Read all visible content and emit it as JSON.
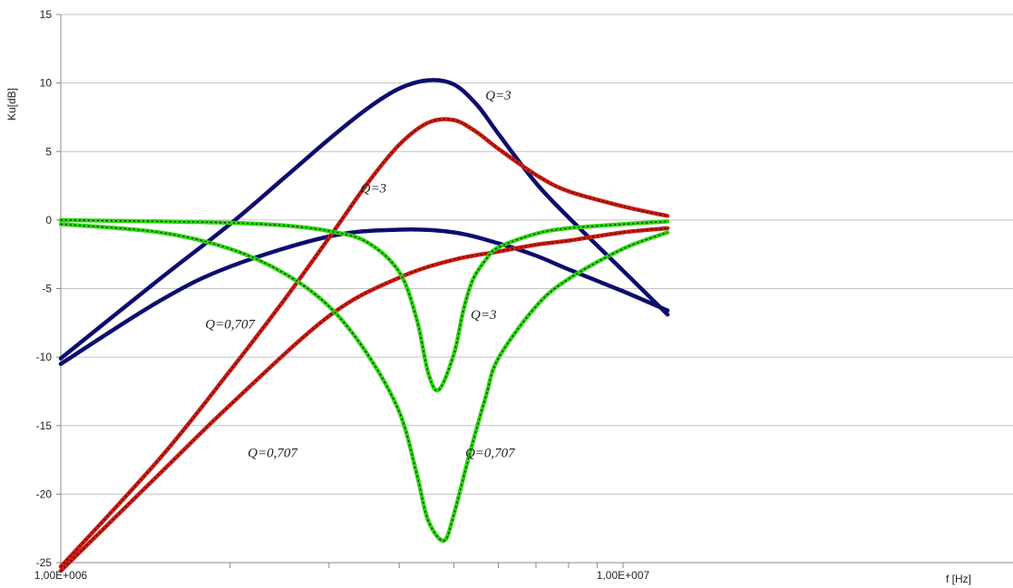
{
  "chart_data": {
    "type": "line",
    "title": "",
    "xlabel": "f [Hz]",
    "ylabel": "Ku[dB]",
    "x_scale": "log",
    "xlim": [
      1000000,
      12000000
    ],
    "ylim": [
      -25,
      15
    ],
    "grid": "horizontal",
    "legend": "none",
    "x_tick_labels": [
      {
        "value": 1000000,
        "label": "1,00E+006"
      },
      {
        "value": 10000000,
        "label": "1,00E+007"
      }
    ],
    "x_minor_ticks": [
      2000000,
      3000000,
      4000000,
      5000000,
      6000000,
      7000000,
      8000000,
      9000000
    ],
    "y_ticks": [
      15,
      10,
      5,
      0,
      -5,
      -10,
      -15,
      -20,
      -25
    ],
    "series": [
      {
        "color": "#0d0d6e",
        "x": [
          1000000,
          1500000,
          2000000,
          2500000,
          3000000,
          3500000,
          4000000,
          4500000,
          5000000,
          5500000,
          6000000,
          7000000,
          8000000,
          10000000,
          12000000
        ],
        "y": [
          -10.1,
          -4.3,
          -0.3,
          3.1,
          5.9,
          8.1,
          9.6,
          10.2,
          9.9,
          8.4,
          6.3,
          2.7,
          0.2,
          -3.7,
          -6.9
        ]
      },
      {
        "color": "#0d0d6e",
        "x": [
          1000000,
          1500000,
          2000000,
          3000000,
          4000000,
          5000000,
          6000000,
          7000000,
          8000000,
          10000000,
          12000000
        ],
        "y": [
          -10.5,
          -5.9,
          -3.4,
          -1.2,
          -0.7,
          -0.9,
          -1.7,
          -2.6,
          -3.6,
          -5.2,
          -6.6
        ]
      },
      {
        "color": "#d01b12",
        "x": [
          1000000,
          1500000,
          2000000,
          2500000,
          3000000,
          3500000,
          4000000,
          4500000,
          5000000,
          5500000,
          6000000,
          7000000,
          8000000,
          10000000,
          12000000
        ],
        "y": [
          -25.3,
          -17.4,
          -11.0,
          -5.8,
          -1.3,
          2.6,
          5.5,
          7.1,
          7.3,
          6.4,
          5.2,
          3.3,
          2.1,
          1.0,
          0.3
        ]
      },
      {
        "color": "#d01b12",
        "x": [
          1000000,
          1500000,
          2000000,
          3000000,
          4000000,
          5000000,
          6000000,
          7000000,
          8000000,
          10000000,
          12000000
        ],
        "y": [
          -25.6,
          -18.5,
          -13.5,
          -7.0,
          -4.2,
          -2.9,
          -2.3,
          -1.8,
          -1.5,
          -0.9,
          -0.6
        ]
      },
      {
        "color": "#2ad60e",
        "x": [
          1000000,
          1500000,
          2000000,
          2500000,
          3000000,
          3500000,
          4000000,
          4300000,
          4500000,
          4700000,
          5000000,
          5200000,
          5400000,
          5700000,
          6000000,
          7000000,
          8000000,
          10000000,
          12000000
        ],
        "y": [
          0.0,
          -0.1,
          -0.2,
          -0.4,
          -0.8,
          -1.6,
          -3.8,
          -7.3,
          -11.1,
          -12.4,
          -9.8,
          -6.6,
          -4.4,
          -2.9,
          -2.0,
          -1.0,
          -0.6,
          -0.3,
          -0.1
        ]
      },
      {
        "color": "#2ad60e",
        "x": [
          1000000,
          1500000,
          2000000,
          2500000,
          3000000,
          3500000,
          4000000,
          4300000,
          4500000,
          4800000,
          5000000,
          5300000,
          5700000,
          6000000,
          7000000,
          8000000,
          10000000,
          12000000
        ],
        "y": [
          -0.3,
          -0.9,
          -2.1,
          -3.9,
          -6.3,
          -9.7,
          -14.0,
          -18.6,
          -21.9,
          -23.4,
          -21.5,
          -17.5,
          -12.9,
          -10.1,
          -6.3,
          -4.3,
          -2.1,
          -0.9
        ]
      }
    ],
    "annotations": [
      {
        "text": "Q=3",
        "x": 6000000,
        "y": 8.8
      },
      {
        "text": "Q=3",
        "x": 3600000,
        "y": 2.0
      },
      {
        "text": "Q=0,707",
        "x": 2000000,
        "y": -7.9
      },
      {
        "text": "Q=3",
        "x": 5650000,
        "y": -7.2
      },
      {
        "text": "Q=0,707",
        "x": 2380000,
        "y": -17.3
      },
      {
        "text": "Q=0,707",
        "x": 5800000,
        "y": -17.3
      }
    ]
  }
}
